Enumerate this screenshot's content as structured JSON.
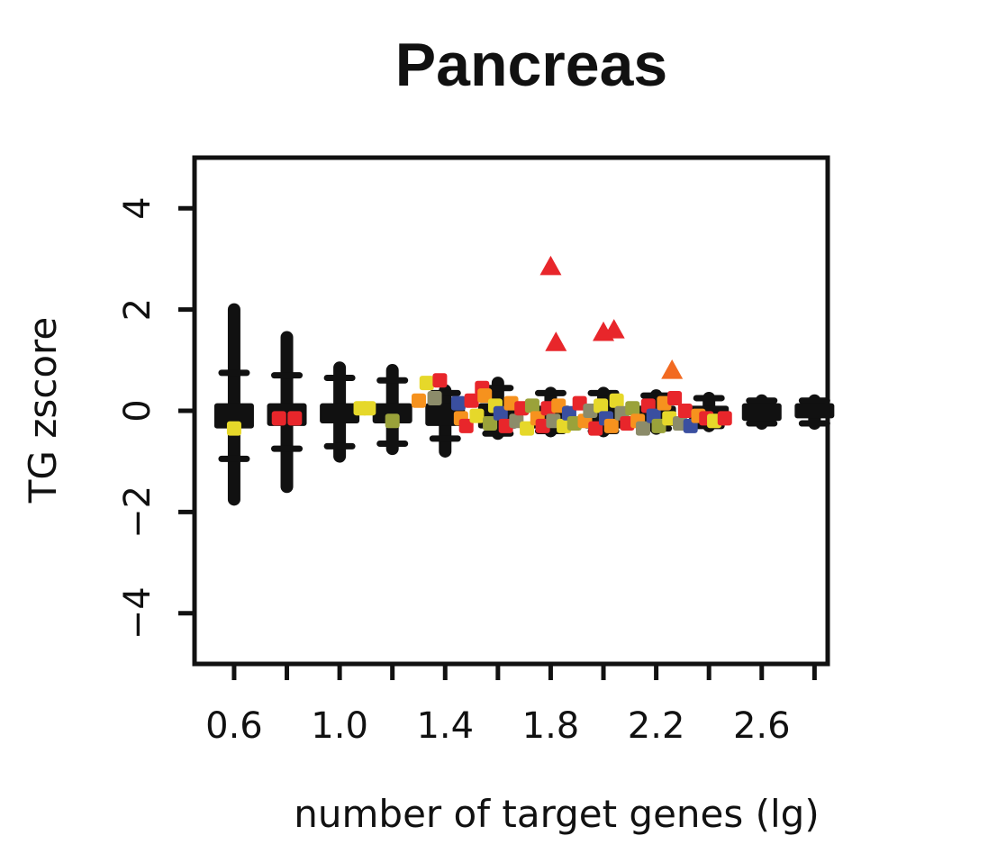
{
  "chart_data": {
    "type": "scatter",
    "title": "Pancreas",
    "xlabel": "number of target genes (lg)",
    "ylabel": "TG zscore",
    "xlim": [
      0.45,
      2.85
    ],
    "ylim": [
      -5.0,
      5.0
    ],
    "x_ticks": [
      0.6,
      0.8,
      1.0,
      1.2,
      1.4,
      1.6,
      1.8,
      2.0,
      2.2,
      2.4,
      2.6,
      2.8
    ],
    "x_tick_labels": [
      "0.6",
      "",
      "1.0",
      "",
      "1.4",
      "",
      "1.8",
      "",
      "2.2",
      "",
      "2.6",
      ""
    ],
    "y_ticks": [
      4,
      2,
      0,
      -2,
      -4
    ],
    "y_tick_labels": [
      "4",
      "2",
      "0",
      "−2",
      "−4"
    ],
    "grid": false,
    "legend": "none",
    "colors": {
      "background_boxes": "#111111",
      "highlight_triangles_red": "#e8262b",
      "highlight_triangles_orange": "#f26a21",
      "point_palette": [
        "#e8262b",
        "#f6921e",
        "#e6d82a",
        "#9aa23a",
        "#8c8c6a",
        "#3a4fa0",
        "#f26a21"
      ]
    },
    "series": [
      {
        "name": "",
        "marker": "box",
        "color": "#111111",
        "boxes": [
          {
            "x": 0.6,
            "q1": -0.35,
            "median": -0.1,
            "q3": 0.15,
            "whisker_low": -1.75,
            "whisker_high": 2.0,
            "cap_low": -0.95,
            "cap_high": 0.75
          },
          {
            "x": 0.8,
            "q1": -0.3,
            "median": -0.1,
            "q3": 0.15,
            "whisker_low": -1.5,
            "whisker_high": 1.45,
            "cap_low": -0.75,
            "cap_high": 0.7
          },
          {
            "x": 1.0,
            "q1": -0.25,
            "median": -0.05,
            "q3": 0.15,
            "whisker_low": -0.9,
            "whisker_high": 0.85,
            "cap_low": -0.7,
            "cap_high": 0.65
          },
          {
            "x": 1.2,
            "q1": -0.25,
            "median": -0.05,
            "q3": 0.15,
            "whisker_low": -0.75,
            "whisker_high": 0.8,
            "cap_low": -0.65,
            "cap_high": 0.6
          },
          {
            "x": 1.4,
            "q1": -0.3,
            "median": -0.05,
            "q3": 0.15,
            "whisker_low": -0.8,
            "whisker_high": 0.4,
            "cap_low": -0.55,
            "cap_high": 0.35
          },
          {
            "x": 1.6,
            "q1": -0.35,
            "median": -0.05,
            "q3": 0.15,
            "whisker_low": -0.45,
            "whisker_high": 0.55,
            "cap_low": -0.45,
            "cap_high": 0.45
          },
          {
            "x": 1.8,
            "q1": -0.35,
            "median": -0.05,
            "q3": 0.1,
            "whisker_low": -0.4,
            "whisker_high": 0.35,
            "cap_low": -0.4,
            "cap_high": 0.35
          },
          {
            "x": 2.0,
            "q1": -0.35,
            "median": -0.05,
            "q3": 0.1,
            "whisker_low": -0.4,
            "whisker_high": 0.35,
            "cap_low": -0.4,
            "cap_high": 0.35
          },
          {
            "x": 2.2,
            "q1": -0.3,
            "median": -0.05,
            "q3": 0.1,
            "whisker_low": -0.35,
            "whisker_high": 0.3,
            "cap_low": -0.35,
            "cap_high": 0.3
          },
          {
            "x": 2.4,
            "q1": -0.25,
            "median": -0.05,
            "q3": 0.1,
            "whisker_low": -0.3,
            "whisker_high": 0.25,
            "cap_low": -0.3,
            "cap_high": 0.25
          },
          {
            "x": 2.6,
            "q1": -0.2,
            "median": -0.02,
            "q3": 0.15,
            "whisker_low": -0.25,
            "whisker_high": 0.2,
            "cap_low": -0.25,
            "cap_high": 0.2
          },
          {
            "x": 2.8,
            "q1": -0.15,
            "median": -0.02,
            "q3": 0.15,
            "whisker_low": -0.25,
            "whisker_high": 0.2,
            "cap_low": -0.25,
            "cap_high": 0.2
          }
        ]
      },
      {
        "name": "",
        "marker": "triangle",
        "points": [
          {
            "x": 1.8,
            "y": 2.85,
            "color": "#e8262b"
          },
          {
            "x": 1.82,
            "y": 1.35,
            "color": "#e8262b"
          },
          {
            "x": 2.0,
            "y": 1.55,
            "color": "#e8262b"
          },
          {
            "x": 2.04,
            "y": 1.6,
            "color": "#e8262b"
          },
          {
            "x": 2.26,
            "y": 0.8,
            "color": "#f26a21"
          }
        ]
      },
      {
        "name": "",
        "marker": "square",
        "points": [
          {
            "x": 0.6,
            "y": -0.35,
            "color": "#e6d82a"
          },
          {
            "x": 0.77,
            "y": -0.15,
            "color": "#e8262b"
          },
          {
            "x": 0.83,
            "y": -0.15,
            "color": "#e8262b"
          },
          {
            "x": 1.08,
            "y": 0.05,
            "color": "#e6d82a"
          },
          {
            "x": 1.11,
            "y": 0.05,
            "color": "#e6d82a"
          },
          {
            "x": 1.2,
            "y": -0.2,
            "color": "#9aa23a"
          },
          {
            "x": 1.3,
            "y": 0.2,
            "color": "#f6921e"
          },
          {
            "x": 1.33,
            "y": 0.55,
            "color": "#e6d82a"
          },
          {
            "x": 1.36,
            "y": 0.25,
            "color": "#8c8c6a"
          },
          {
            "x": 1.38,
            "y": 0.6,
            "color": "#e8262b"
          },
          {
            "x": 1.45,
            "y": 0.15,
            "color": "#3a4fa0"
          },
          {
            "x": 1.46,
            "y": -0.15,
            "color": "#f6921e"
          },
          {
            "x": 1.48,
            "y": -0.3,
            "color": "#e8262b"
          },
          {
            "x": 1.5,
            "y": 0.2,
            "color": "#e8262b"
          },
          {
            "x": 1.52,
            "y": -0.1,
            "color": "#e6d82a"
          },
          {
            "x": 1.54,
            "y": 0.45,
            "color": "#e8262b"
          },
          {
            "x": 1.55,
            "y": 0.3,
            "color": "#f6921e"
          },
          {
            "x": 1.57,
            "y": -0.25,
            "color": "#9aa23a"
          },
          {
            "x": 1.59,
            "y": 0.1,
            "color": "#e6d82a"
          },
          {
            "x": 1.61,
            "y": -0.05,
            "color": "#3a4fa0"
          },
          {
            "x": 1.63,
            "y": -0.3,
            "color": "#e8262b"
          },
          {
            "x": 1.65,
            "y": 0.15,
            "color": "#f6921e"
          },
          {
            "x": 1.67,
            "y": -0.2,
            "color": "#8c8c6a"
          },
          {
            "x": 1.69,
            "y": 0.05,
            "color": "#e8262b"
          },
          {
            "x": 1.71,
            "y": -0.35,
            "color": "#e6d82a"
          },
          {
            "x": 1.73,
            "y": 0.1,
            "color": "#9aa23a"
          },
          {
            "x": 1.75,
            "y": -0.15,
            "color": "#f6921e"
          },
          {
            "x": 1.77,
            "y": -0.3,
            "color": "#e8262b"
          },
          {
            "x": 1.79,
            "y": 0.05,
            "color": "#e8262b"
          },
          {
            "x": 1.81,
            "y": -0.2,
            "color": "#8c8c6a"
          },
          {
            "x": 1.83,
            "y": 0.1,
            "color": "#f6921e"
          },
          {
            "x": 1.85,
            "y": -0.3,
            "color": "#e6d82a"
          },
          {
            "x": 1.87,
            "y": -0.05,
            "color": "#3a4fa0"
          },
          {
            "x": 1.89,
            "y": -0.25,
            "color": "#9aa23a"
          },
          {
            "x": 1.91,
            "y": 0.15,
            "color": "#e8262b"
          },
          {
            "x": 1.93,
            "y": -0.2,
            "color": "#f6921e"
          },
          {
            "x": 1.95,
            "y": 0.0,
            "color": "#8c8c6a"
          },
          {
            "x": 1.97,
            "y": -0.35,
            "color": "#e8262b"
          },
          {
            "x": 1.99,
            "y": 0.1,
            "color": "#e6d82a"
          },
          {
            "x": 2.01,
            "y": -0.15,
            "color": "#3a4fa0"
          },
          {
            "x": 2.03,
            "y": -0.3,
            "color": "#f6921e"
          },
          {
            "x": 2.05,
            "y": 0.2,
            "color": "#e6d82a"
          },
          {
            "x": 2.07,
            "y": -0.05,
            "color": "#8c8c6a"
          },
          {
            "x": 2.09,
            "y": -0.25,
            "color": "#e8262b"
          },
          {
            "x": 2.11,
            "y": 0.05,
            "color": "#9aa23a"
          },
          {
            "x": 2.13,
            "y": -0.2,
            "color": "#f6921e"
          },
          {
            "x": 2.15,
            "y": -0.35,
            "color": "#8c8c6a"
          },
          {
            "x": 2.17,
            "y": 0.1,
            "color": "#e8262b"
          },
          {
            "x": 2.19,
            "y": -0.1,
            "color": "#3a4fa0"
          },
          {
            "x": 2.21,
            "y": -0.3,
            "color": "#9aa23a"
          },
          {
            "x": 2.23,
            "y": 0.15,
            "color": "#f6921e"
          },
          {
            "x": 2.25,
            "y": -0.15,
            "color": "#e6d82a"
          },
          {
            "x": 2.27,
            "y": 0.25,
            "color": "#e8262b"
          },
          {
            "x": 2.29,
            "y": -0.25,
            "color": "#8c8c6a"
          },
          {
            "x": 2.31,
            "y": 0.0,
            "color": "#e8262b"
          },
          {
            "x": 2.33,
            "y": -0.3,
            "color": "#3a4fa0"
          },
          {
            "x": 2.36,
            "y": -0.1,
            "color": "#f6921e"
          },
          {
            "x": 2.39,
            "y": -0.15,
            "color": "#e8262b"
          },
          {
            "x": 2.42,
            "y": -0.2,
            "color": "#e6d82a"
          },
          {
            "x": 2.46,
            "y": -0.15,
            "color": "#e8262b"
          }
        ]
      }
    ]
  }
}
